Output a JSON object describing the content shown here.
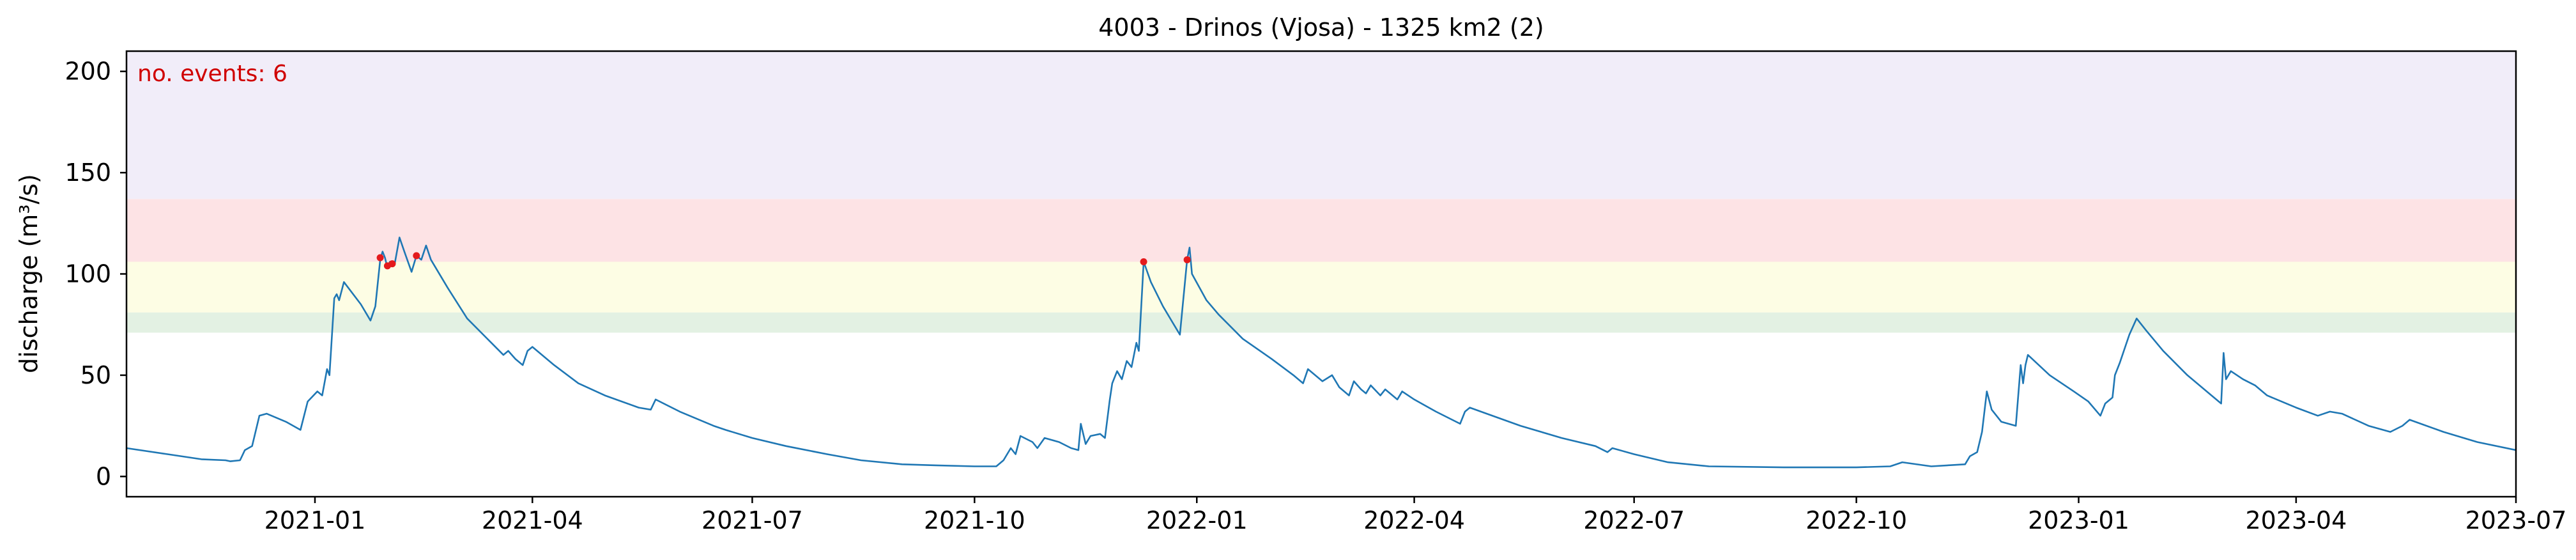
{
  "chart_data": {
    "type": "line",
    "title": "4003 - Drinos (Vjosa) - 1325 km2 (2)",
    "xlabel": "",
    "ylabel": "discharge (m³/s)",
    "xlim": [
      "2020-10-15",
      "2023-07-01"
    ],
    "ylim": [
      -10,
      210
    ],
    "x_ticks": [
      "2021-01",
      "2021-04",
      "2021-07",
      "2021-10",
      "2022-01",
      "2022-04",
      "2022-07",
      "2022-10",
      "2023-01",
      "2023-04",
      "2023-07"
    ],
    "y_ticks": [
      0,
      50,
      100,
      150,
      200
    ],
    "grid": false,
    "annotation": {
      "text": "no. events: 6",
      "color": "#d00000"
    },
    "threshold_bands": [
      {
        "from": 71,
        "to": 81,
        "color": "#e3f1e3"
      },
      {
        "from": 81,
        "to": 106,
        "color": "#fdfde4"
      },
      {
        "from": 106,
        "to": 137,
        "color": "#fde3e5"
      },
      {
        "from": 137,
        "to": 210,
        "color": "#f1edf9"
      }
    ],
    "series": [
      {
        "color": "#1f77b4",
        "points": [
          [
            "2020-10-15",
            14
          ],
          [
            "2020-11-01",
            11
          ],
          [
            "2020-11-15",
            8.5
          ],
          [
            "2020-11-25",
            8
          ],
          [
            "2020-11-27",
            7.5
          ],
          [
            "2020-12-01",
            8
          ],
          [
            "2020-12-03",
            13
          ],
          [
            "2020-12-06",
            15
          ],
          [
            "2020-12-09",
            30
          ],
          [
            "2020-12-12",
            31
          ],
          [
            "2020-12-20",
            27
          ],
          [
            "2020-12-26",
            23
          ],
          [
            "2020-12-29",
            37
          ],
          [
            "2021-01-02",
            42
          ],
          [
            "2021-01-04",
            40
          ],
          [
            "2021-01-06",
            53
          ],
          [
            "2021-01-07",
            50
          ],
          [
            "2021-01-09",
            88
          ],
          [
            "2021-01-10",
            90
          ],
          [
            "2021-01-11",
            87
          ],
          [
            "2021-01-13",
            96
          ],
          [
            "2021-01-20",
            85
          ],
          [
            "2021-01-24",
            77
          ],
          [
            "2021-01-26",
            84
          ],
          [
            "2021-01-28",
            107
          ],
          [
            "2021-01-29",
            111
          ],
          [
            "2021-01-30",
            108
          ],
          [
            "2021-01-31",
            103
          ],
          [
            "2021-02-01",
            106
          ],
          [
            "2021-02-03",
            105
          ],
          [
            "2021-02-05",
            118
          ],
          [
            "2021-02-07",
            111
          ],
          [
            "2021-02-10",
            101
          ],
          [
            "2021-02-12",
            109
          ],
          [
            "2021-02-14",
            107
          ],
          [
            "2021-02-16",
            114
          ],
          [
            "2021-02-18",
            107
          ],
          [
            "2021-02-25",
            93
          ],
          [
            "2021-03-05",
            78
          ],
          [
            "2021-03-15",
            66
          ],
          [
            "2021-03-20",
            60
          ],
          [
            "2021-03-22",
            62
          ],
          [
            "2021-03-25",
            58
          ],
          [
            "2021-03-28",
            55
          ],
          [
            "2021-03-30",
            62
          ],
          [
            "2021-04-01",
            64
          ],
          [
            "2021-04-10",
            55
          ],
          [
            "2021-04-20",
            46
          ],
          [
            "2021-05-01",
            40
          ],
          [
            "2021-05-15",
            34
          ],
          [
            "2021-05-20",
            33
          ],
          [
            "2021-05-22",
            38
          ],
          [
            "2021-06-01",
            32
          ],
          [
            "2021-06-15",
            25
          ],
          [
            "2021-06-20",
            23
          ],
          [
            "2021-07-01",
            19
          ],
          [
            "2021-07-15",
            15
          ],
          [
            "2021-08-01",
            11
          ],
          [
            "2021-08-15",
            8
          ],
          [
            "2021-09-01",
            6
          ],
          [
            "2021-09-15",
            5.5
          ],
          [
            "2021-10-01",
            5
          ],
          [
            "2021-10-10",
            5
          ],
          [
            "2021-10-13",
            8
          ],
          [
            "2021-10-16",
            14
          ],
          [
            "2021-10-18",
            11
          ],
          [
            "2021-10-20",
            20
          ],
          [
            "2021-10-25",
            17
          ],
          [
            "2021-10-27",
            14
          ],
          [
            "2021-10-30",
            19
          ],
          [
            "2021-11-05",
            17
          ],
          [
            "2021-11-10",
            14
          ],
          [
            "2021-11-13",
            13
          ],
          [
            "2021-11-14",
            26
          ],
          [
            "2021-11-16",
            16
          ],
          [
            "2021-11-18",
            20
          ],
          [
            "2021-11-22",
            21
          ],
          [
            "2021-11-24",
            19
          ],
          [
            "2021-11-26",
            38
          ],
          [
            "2021-11-27",
            46
          ],
          [
            "2021-11-29",
            52
          ],
          [
            "2021-12-01",
            48
          ],
          [
            "2021-12-03",
            57
          ],
          [
            "2021-12-05",
            54
          ],
          [
            "2021-12-07",
            66
          ],
          [
            "2021-12-08",
            62
          ],
          [
            "2021-12-10",
            106
          ],
          [
            "2021-12-13",
            96
          ],
          [
            "2021-12-18",
            84
          ],
          [
            "2021-12-22",
            76
          ],
          [
            "2021-12-25",
            70
          ],
          [
            "2021-12-28",
            107
          ],
          [
            "2021-12-29",
            113
          ],
          [
            "2021-12-30",
            100
          ],
          [
            "2022-01-05",
            87
          ],
          [
            "2022-01-10",
            80
          ],
          [
            "2022-01-20",
            68
          ],
          [
            "2022-02-01",
            58
          ],
          [
            "2022-02-10",
            50
          ],
          [
            "2022-02-14",
            46
          ],
          [
            "2022-02-16",
            53
          ],
          [
            "2022-02-22",
            47
          ],
          [
            "2022-02-26",
            50
          ],
          [
            "2022-03-01",
            44
          ],
          [
            "2022-03-05",
            40
          ],
          [
            "2022-03-07",
            47
          ],
          [
            "2022-03-10",
            43
          ],
          [
            "2022-03-12",
            41
          ],
          [
            "2022-03-14",
            45
          ],
          [
            "2022-03-18",
            40
          ],
          [
            "2022-03-20",
            43
          ],
          [
            "2022-03-25",
            38
          ],
          [
            "2022-03-27",
            42
          ],
          [
            "2022-04-01",
            38
          ],
          [
            "2022-04-10",
            32
          ],
          [
            "2022-04-20",
            26
          ],
          [
            "2022-04-22",
            32
          ],
          [
            "2022-04-24",
            34
          ],
          [
            "2022-05-01",
            31
          ],
          [
            "2022-05-15",
            25
          ],
          [
            "2022-06-01",
            19
          ],
          [
            "2022-06-15",
            15
          ],
          [
            "2022-06-20",
            12
          ],
          [
            "2022-06-22",
            14
          ],
          [
            "2022-07-01",
            11
          ],
          [
            "2022-07-15",
            7
          ],
          [
            "2022-08-01",
            5
          ],
          [
            "2022-09-01",
            4.5
          ],
          [
            "2022-10-01",
            4.5
          ],
          [
            "2022-10-15",
            5
          ],
          [
            "2022-10-20",
            7
          ],
          [
            "2022-11-01",
            5
          ],
          [
            "2022-11-15",
            6
          ],
          [
            "2022-11-17",
            10
          ],
          [
            "2022-11-20",
            12
          ],
          [
            "2022-11-22",
            22
          ],
          [
            "2022-11-24",
            42
          ],
          [
            "2022-11-26",
            33
          ],
          [
            "2022-11-30",
            27
          ],
          [
            "2022-12-06",
            25
          ],
          [
            "2022-12-08",
            55
          ],
          [
            "2022-12-09",
            46
          ],
          [
            "2022-12-10",
            55
          ],
          [
            "2022-12-11",
            60
          ],
          [
            "2022-12-20",
            50
          ],
          [
            "2022-12-30",
            42
          ],
          [
            "2023-01-05",
            37
          ],
          [
            "2023-01-10",
            30
          ],
          [
            "2023-01-12",
            36
          ],
          [
            "2023-01-15",
            39
          ],
          [
            "2023-01-16",
            50
          ],
          [
            "2023-01-18",
            56
          ],
          [
            "2023-01-22",
            70
          ],
          [
            "2023-01-25",
            78
          ],
          [
            "2023-01-29",
            72
          ],
          [
            "2023-02-05",
            62
          ],
          [
            "2023-02-15",
            50
          ],
          [
            "2023-02-25",
            40
          ],
          [
            "2023-03-01",
            36
          ],
          [
            "2023-03-02",
            61
          ],
          [
            "2023-03-03",
            48
          ],
          [
            "2023-03-05",
            52
          ],
          [
            "2023-03-10",
            48
          ],
          [
            "2023-03-15",
            45
          ],
          [
            "2023-03-20",
            40
          ],
          [
            "2023-04-01",
            34
          ],
          [
            "2023-04-10",
            30
          ],
          [
            "2023-04-15",
            32
          ],
          [
            "2023-04-20",
            31
          ],
          [
            "2023-05-01",
            25
          ],
          [
            "2023-05-10",
            22
          ],
          [
            "2023-05-15",
            25
          ],
          [
            "2023-05-18",
            28
          ],
          [
            "2023-06-01",
            22
          ],
          [
            "2023-06-15",
            17
          ],
          [
            "2023-07-01",
            13
          ]
        ]
      }
    ],
    "events": [
      {
        "x": "2021-01-28",
        "y": 108
      },
      {
        "x": "2021-01-31",
        "y": 104
      },
      {
        "x": "2021-02-02",
        "y": 105
      },
      {
        "x": "2021-02-12",
        "y": 109
      },
      {
        "x": "2021-12-10",
        "y": 106
      },
      {
        "x": "2021-12-28",
        "y": 107
      }
    ],
    "event_color": "#e41a1c"
  }
}
